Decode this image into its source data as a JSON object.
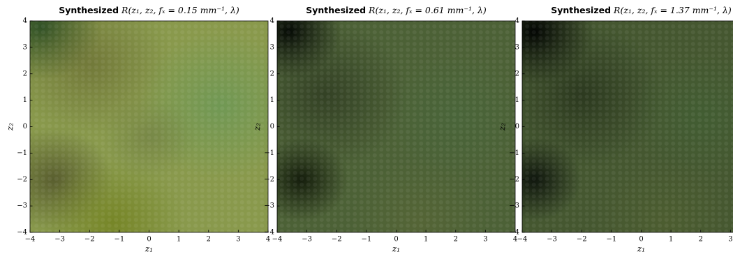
{
  "chart_data": [
    {
      "type": "image",
      "title": [
        "Synthesized",
        "R(z₁, z₂, fₓ = 0.15 mm⁻¹, λ)"
      ],
      "xlabel": "z₁",
      "ylabel": "z₂",
      "xlim": [
        -4,
        4
      ],
      "ylim": [
        -4,
        4
      ],
      "xticks": [
        {
          "value": -4,
          "label": "−4"
        },
        {
          "value": -3,
          "label": "−3"
        },
        {
          "value": -2,
          "label": "−2"
        },
        {
          "value": -1,
          "label": "−1"
        },
        0,
        1,
        2,
        3,
        4
      ],
      "yticks": [
        {
          "value": -4,
          "label": "−4"
        },
        {
          "value": -3,
          "label": "−3"
        },
        {
          "value": -2,
          "label": "−2"
        },
        {
          "value": -1,
          "label": "−1"
        },
        0,
        1,
        2,
        3,
        4
      ]
    },
    {
      "type": "image",
      "title": [
        "Synthesized",
        "R(z₁, z₂, fₓ = 0.61 mm⁻¹, λ)"
      ],
      "xlabel": "z₁",
      "ylabel": "z₂",
      "xlim": [
        -4,
        4
      ],
      "ylim": [
        -4,
        4
      ],
      "xticks": [
        {
          "value": -4,
          "label": "−4"
        },
        {
          "value": -3,
          "label": "−3"
        },
        {
          "value": -2,
          "label": "−2"
        },
        {
          "value": -1,
          "label": "−1"
        },
        0,
        1,
        2,
        3,
        4
      ],
      "yticks": [
        {
          "value": -4,
          "label": "−4"
        },
        {
          "value": -3,
          "label": "−3"
        },
        {
          "value": -2,
          "label": "−2"
        },
        {
          "value": -1,
          "label": "−1"
        },
        0,
        1,
        2,
        3,
        4
      ]
    },
    {
      "type": "image",
      "title": [
        "Synthesized",
        "R(z₁, z₂, fₓ = 1.37 mm⁻¹, λ)"
      ],
      "xlabel": "z₁",
      "ylabel": "z₂",
      "xlim": [
        -4,
        4
      ],
      "ylim": [
        -4,
        4
      ],
      "xticks": [
        {
          "value": -4,
          "label": "−4"
        },
        {
          "value": -3,
          "label": "−3"
        },
        {
          "value": -2,
          "label": "−2"
        },
        {
          "value": -1,
          "label": "−1"
        },
        0,
        1,
        2,
        3
      ],
      "yticks": [
        {
          "value": -4,
          "label": "−4"
        },
        {
          "value": -3,
          "label": "−3"
        },
        {
          "value": -2,
          "label": "−2"
        },
        {
          "value": -1,
          "label": "−1"
        },
        0,
        1,
        2,
        3,
        4
      ]
    }
  ]
}
